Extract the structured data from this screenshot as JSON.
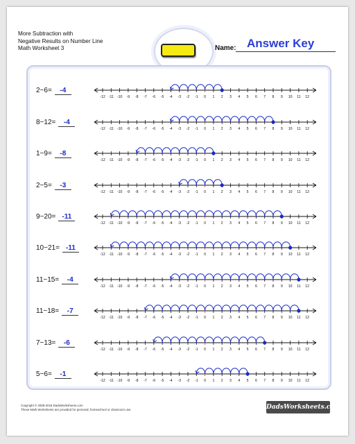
{
  "header": {
    "title_lines": [
      "More Subtraction with",
      "Negative Results on Number Line",
      "Math Worksheet 3"
    ],
    "name_label": "Name:",
    "answer_key": "Answer Key"
  },
  "number_line": {
    "min": -12,
    "max": 12,
    "tick_labels": [
      "-12",
      "-11",
      "-10",
      "-9",
      "-8",
      "-7",
      "-6",
      "-5",
      "-4",
      "-3",
      "-2",
      "-1",
      "0",
      "1",
      "2",
      "3",
      "4",
      "5",
      "6",
      "7",
      "8",
      "9",
      "10",
      "11",
      "12"
    ]
  },
  "problems": [
    {
      "expression": "2−6=",
      "answer": "-4",
      "start": 2,
      "end": -4
    },
    {
      "expression": "8−12=",
      "answer": "-4",
      "start": 8,
      "end": -4
    },
    {
      "expression": "1−9=",
      "answer": "-8",
      "start": 1,
      "end": -8
    },
    {
      "expression": "2−5=",
      "answer": "-3",
      "start": 2,
      "end": -3
    },
    {
      "expression": "9−20=",
      "answer": "-11",
      "start": 9,
      "end": -11
    },
    {
      "expression": "10−21=",
      "answer": "-11",
      "start": 10,
      "end": -11
    },
    {
      "expression": "11−15=",
      "answer": "-4",
      "start": 11,
      "end": -4
    },
    {
      "expression": "11−18=",
      "answer": "-7",
      "start": 11,
      "end": -7
    },
    {
      "expression": "7−13=",
      "answer": "-6",
      "start": 7,
      "end": -6
    },
    {
      "expression": "5−6=",
      "answer": "-1",
      "start": 5,
      "end": -1
    }
  ],
  "footer": {
    "copyright": "Copyright © 2008-2018 DadsWorksheets.com",
    "usage": "These Math Worksheets are provided for personal, homeschool or classroom use.",
    "logo_text": "DadsWorksheets.com"
  },
  "colors": {
    "arc": "#1b2bc4",
    "zero_tick": "#d8342b",
    "answer_key": "#2a3dd9",
    "frame": "#c6cbe7",
    "pencil": "#f5ea12"
  }
}
